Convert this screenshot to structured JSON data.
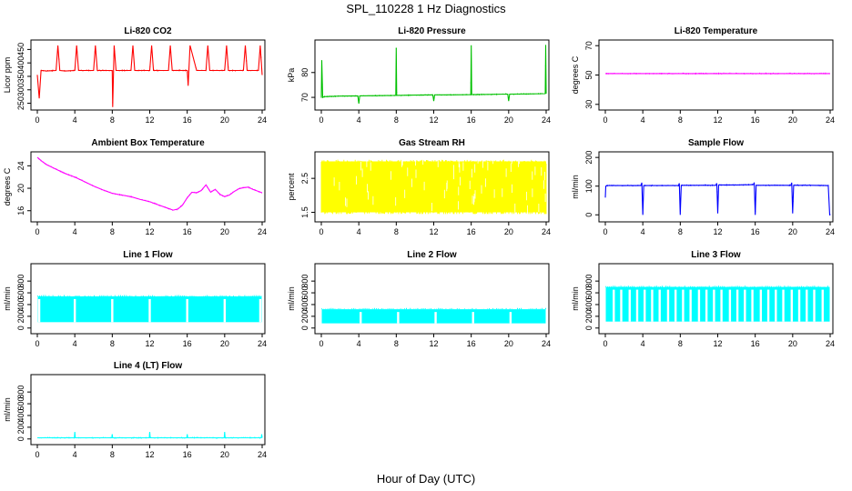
{
  "figure": {
    "title": "SPL_110228  1 Hz Diagnostics",
    "xlabel": "Hour of Day (UTC)"
  },
  "chart_data": [
    {
      "type": "line",
      "title": "Li-820 CO2",
      "ylabel": "Licor ppm",
      "xlim": [
        0,
        24
      ],
      "ylim": [
        235,
        475
      ],
      "xticks": [
        0,
        4,
        8,
        12,
        16,
        20,
        24
      ],
      "yticks": [
        250,
        300,
        350,
        400,
        450
      ],
      "color": "#ff0000",
      "series": [
        {
          "x": [
            0,
            0.2,
            0.4,
            1,
            2,
            2.2,
            2.4,
            3,
            4,
            4.2,
            4.4,
            5,
            6,
            6.2,
            6.4,
            7,
            8,
            8.05,
            8.2,
            8.4,
            9,
            10,
            10.2,
            10.4,
            11,
            12,
            12.2,
            12.4,
            13,
            14,
            14.2,
            14.4,
            15,
            16,
            16.1,
            16.3,
            17,
            18,
            18.2,
            18.4,
            19,
            20,
            20.2,
            20.4,
            21,
            22,
            22.2,
            22.4,
            23,
            23.6,
            23.8,
            24
          ],
          "y": [
            355,
            268,
            372,
            370,
            372,
            465,
            372,
            370,
            372,
            465,
            372,
            372,
            372,
            465,
            372,
            372,
            372,
            236,
            465,
            372,
            372,
            372,
            465,
            372,
            372,
            372,
            465,
            372,
            372,
            372,
            465,
            372,
            372,
            372,
            315,
            465,
            372,
            372,
            465,
            372,
            372,
            372,
            465,
            372,
            372,
            372,
            465,
            372,
            372,
            372,
            465,
            355
          ]
        }
      ]
    },
    {
      "type": "line",
      "title": "Li-820 Pressure",
      "ylabel": "kPa",
      "xlim": [
        0,
        24
      ],
      "ylim": [
        66,
        92
      ],
      "xticks": [
        0,
        4,
        8,
        12,
        16,
        20,
        24
      ],
      "yticks": [
        70,
        80
      ],
      "color": "#00c000",
      "series": [
        {
          "x": [
            0,
            0.05,
            0.15,
            0.3,
            2,
            3.9,
            4,
            4.1,
            6,
            7.95,
            8,
            8.05,
            10,
            11.9,
            12,
            12.1,
            14,
            15.95,
            16,
            16.05,
            18,
            19.9,
            20,
            20.1,
            22,
            23.9,
            23.95,
            24
          ],
          "y": [
            70,
            85,
            70,
            70.3,
            70.5,
            70.6,
            67.5,
            70.6,
            70.7,
            70.8,
            90,
            70.8,
            70.9,
            71,
            68.5,
            71,
            71,
            71.1,
            91,
            71.1,
            71.2,
            71.3,
            68.5,
            71.3,
            71.4,
            71.5,
            91,
            71.5
          ]
        }
      ]
    },
    {
      "type": "line",
      "title": "Li-820 Temperature",
      "ylabel": "degrees C",
      "xlim": [
        0,
        24
      ],
      "ylim": [
        28,
        72
      ],
      "xticks": [
        0,
        4,
        8,
        12,
        16,
        20,
        24
      ],
      "yticks": [
        30,
        50,
        70
      ],
      "color": "#ff00ff",
      "series": [
        {
          "x": [
            0,
            24
          ],
          "y": [
            51,
            51
          ]
        }
      ]
    },
    {
      "type": "line",
      "title": "Ambient Box Temperature",
      "ylabel": "degrees C",
      "xlim": [
        0,
        24
      ],
      "ylim": [
        14.5,
        26
      ],
      "xticks": [
        0,
        4,
        8,
        12,
        16,
        20,
        24
      ],
      "yticks": [
        16,
        20,
        24
      ],
      "color": "#ff00ff",
      "series": [
        {
          "x": [
            0,
            0.5,
            1,
            2,
            3,
            4,
            5,
            6,
            7,
            8,
            9,
            10,
            11,
            12,
            13,
            14,
            14.5,
            15,
            15.5,
            16,
            16.5,
            17,
            17.5,
            18,
            18.5,
            19,
            19.5,
            20,
            20.5,
            21,
            21.5,
            22,
            22.5,
            23,
            23.5,
            24
          ],
          "y": [
            25.5,
            24.8,
            24.2,
            23.4,
            22.6,
            22,
            21.2,
            20.4,
            19.7,
            19.1,
            18.8,
            18.5,
            18,
            17.6,
            17,
            16.4,
            16.1,
            16.3,
            17,
            18.3,
            19.3,
            19.2,
            19.6,
            20.6,
            19.3,
            19.8,
            18.9,
            18.5,
            18.8,
            19.4,
            19.9,
            20.1,
            20.2,
            19.8,
            19.5,
            19.2
          ]
        }
      ]
    },
    {
      "type": "line",
      "title": "Gas Stream RH",
      "ylabel": "percent",
      "xlim": [
        0,
        24
      ],
      "ylim": [
        1.3,
        3.2
      ],
      "xticks": [
        0,
        4,
        8,
        12,
        16,
        20,
        24
      ],
      "yticks": [
        1.5,
        2.5
      ],
      "color": "#ffff00",
      "band": [
        1.45,
        3.05
      ]
    },
    {
      "type": "line",
      "title": "Sample Flow",
      "ylabel": "ml/min",
      "xlim": [
        0,
        24
      ],
      "ylim": [
        -15,
        210
      ],
      "xticks": [
        0,
        4,
        8,
        12,
        16,
        20,
        24
      ],
      "yticks": [
        0,
        100,
        200
      ],
      "color": "#0000ff",
      "series": [
        {
          "x": [
            0,
            0.05,
            0.2,
            2,
            3.8,
            3.9,
            4.0,
            4.1,
            6,
            7.8,
            7.9,
            8.0,
            8.1,
            10,
            11.8,
            11.9,
            12.0,
            12.1,
            14,
            15.8,
            15.9,
            16.0,
            16.1,
            18,
            19.8,
            19.9,
            20.0,
            20.1,
            22,
            23.7,
            23.8,
            23.95,
            24
          ],
          "y": [
            60,
            100,
            102,
            102,
            102,
            112,
            0,
            102,
            102,
            102,
            110,
            0,
            103,
            103,
            103,
            110,
            5,
            104,
            104,
            105,
            112,
            0,
            103,
            103,
            103,
            112,
            5,
            103,
            103,
            102,
            103,
            0,
            0
          ]
        }
      ]
    },
    {
      "type": "area",
      "title": "Line 1 Flow",
      "ylabel": "ml/min",
      "xlim": [
        0,
        24
      ],
      "ylim": [
        -50,
        1050
      ],
      "xticks": [
        0,
        4,
        8,
        12,
        16,
        20,
        24
      ],
      "yticks": [
        0,
        200,
        400,
        600,
        800
      ],
      "color": "#00ffff",
      "band": [
        100,
        540
      ],
      "gaps": [
        0.2,
        4,
        8,
        12,
        16,
        20,
        23.8
      ]
    },
    {
      "type": "area",
      "title": "Line 2 Flow",
      "ylabel": "ml/min",
      "xlim": [
        0,
        24
      ],
      "ylim": [
        -50,
        1050
      ],
      "xticks": [
        0,
        4,
        8,
        12,
        16,
        20,
        24
      ],
      "yticks": [
        0,
        200,
        400,
        600,
        800
      ],
      "color": "#00ffff",
      "band": [
        80,
        320
      ],
      "gaps": [
        4.2,
        8.2,
        12.2,
        16.2,
        20.2
      ]
    },
    {
      "type": "area",
      "title": "Line 3 Flow",
      "ylabel": "ml/min",
      "xlim": [
        0,
        24
      ],
      "ylim": [
        -50,
        1050
      ],
      "xticks": [
        0,
        4,
        8,
        12,
        16,
        20,
        24
      ],
      "yticks": [
        0,
        200,
        400,
        600,
        800
      ],
      "color": "#00ffff",
      "band": [
        110,
        700
      ],
      "gaps": [
        0.9,
        1.7,
        2.6,
        3.4,
        4.2,
        5.0,
        5.8,
        6.7,
        7.5,
        8.3,
        9.1,
        10.0,
        10.8,
        11.6,
        12.4,
        13.3,
        14.1,
        14.9,
        15.7,
        16.6,
        17.4,
        18.2,
        19.0,
        19.9,
        20.7,
        21.5,
        22.3,
        23.2
      ]
    },
    {
      "type": "line",
      "title": "Line 4 (LT) Flow",
      "ylabel": "ml/min",
      "xlim": [
        0,
        24
      ],
      "ylim": [
        -50,
        1050
      ],
      "xticks": [
        0,
        4,
        8,
        12,
        16,
        20,
        24
      ],
      "yticks": [
        0,
        200,
        400,
        600,
        800
      ],
      "color": "#00ffff",
      "series": [
        {
          "x": [
            0,
            3.95,
            4,
            4.05,
            7.95,
            8,
            8.05,
            11.95,
            12,
            12.05,
            15.95,
            16,
            16.05,
            19.95,
            20,
            20.05,
            23.9,
            23.95,
            24
          ],
          "y": [
            20,
            20,
            120,
            20,
            20,
            80,
            20,
            20,
            120,
            20,
            20,
            80,
            20,
            20,
            120,
            20,
            20,
            80,
            20
          ]
        }
      ]
    }
  ]
}
